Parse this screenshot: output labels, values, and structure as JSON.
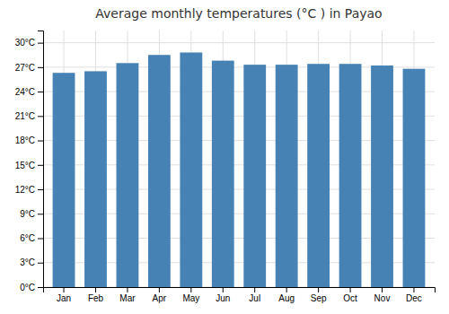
{
  "chart_data": {
    "type": "bar",
    "title": "Average monthly temperatures (°C ) in Payao",
    "categories": [
      "Jan",
      "Feb",
      "Mar",
      "Apr",
      "May",
      "Jun",
      "Jul",
      "Aug",
      "Sep",
      "Oct",
      "Nov",
      "Dec"
    ],
    "values": [
      26.3,
      26.5,
      27.5,
      28.5,
      28.8,
      27.8,
      27.3,
      27.3,
      27.4,
      27.4,
      27.2,
      26.8
    ],
    "ylim": [
      0,
      31.5
    ],
    "yticks": [
      {
        "value": 0,
        "label": "0°C"
      },
      {
        "value": 3,
        "label": "3°C"
      },
      {
        "value": 6,
        "label": "6°C"
      },
      {
        "value": 9,
        "label": "9°C"
      },
      {
        "value": 12,
        "label": "12°C"
      },
      {
        "value": 15,
        "label": "15°C"
      },
      {
        "value": 18,
        "label": "18°C"
      },
      {
        "value": 21,
        "label": "21°C"
      },
      {
        "value": 24,
        "label": "24°C"
      },
      {
        "value": 27,
        "label": "27°C"
      },
      {
        "value": 30,
        "label": "30°C"
      }
    ],
    "grid": true
  }
}
